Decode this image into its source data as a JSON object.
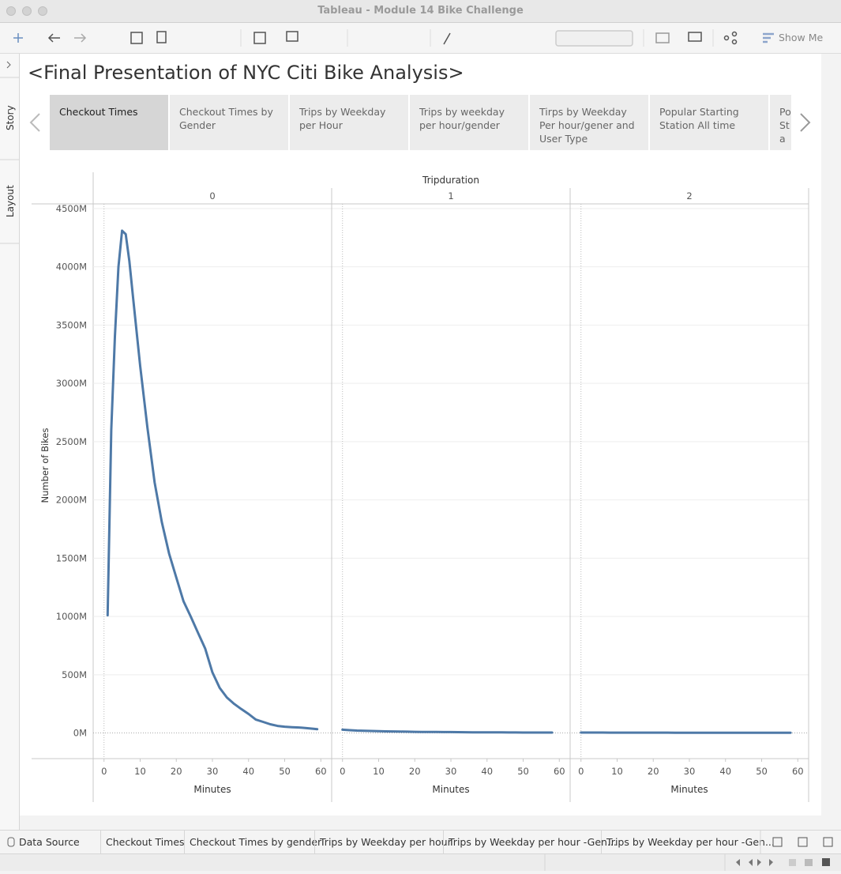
{
  "window": {
    "title": "Tableau - Module 14 Bike Challenge"
  },
  "toolbar": {
    "show_me": "Show Me"
  },
  "side_tabs": [
    "Story",
    "Layout"
  ],
  "story": {
    "title": "<Final Presentation of NYC Citi Bike Analysis>",
    "points": [
      "Checkout Times",
      "Checkout Times by Gender",
      "Trips by Weekday per Hour",
      "Trips by weekday per hour/gender",
      "Tirps by Weekday Per hour/gener and User Type",
      "Popular Starting Station All time",
      "Po Sta"
    ]
  },
  "sheet_tabs": [
    "Data Source",
    "Checkout Times",
    "Checkout Times by gender",
    "Trips by Weekday per hour",
    "Trips by Weekday per hour -Gen...",
    "Trips by Weekday per hour -Gen..."
  ],
  "chart_data": {
    "type": "line",
    "facet_label": "Tripduration",
    "x_label": "Minutes",
    "y_label": "Number of Bikes",
    "series": [
      {
        "name": "0",
        "color": "#4e79a7",
        "x": [
          1,
          2,
          3,
          4,
          5,
          6,
          7,
          8,
          9,
          10,
          12,
          14,
          16,
          18,
          20,
          22,
          24,
          26,
          28,
          30,
          32,
          34,
          36,
          38,
          40,
          42,
          44,
          46,
          48,
          50,
          52,
          54,
          56,
          58,
          59
        ],
        "values": [
          1010000000,
          2600000000,
          3400000000,
          4000000000,
          4310000000,
          4280000000,
          4050000000,
          3750000000,
          3450000000,
          3150000000,
          2625000000,
          2150000000,
          1810000000,
          1540000000,
          1335000000,
          1130000000,
          1000000000,
          860000000,
          725000000,
          520000000,
          387000000,
          305000000,
          250000000,
          205000000,
          163000000,
          115000000,
          95000000,
          75000000,
          61000000,
          54000000,
          50000000,
          47000000,
          42000000,
          36000000,
          33000000
        ]
      },
      {
        "name": "1",
        "color": "#4e79a7",
        "x": [
          0,
          2,
          4,
          6,
          8,
          10,
          12,
          14,
          16,
          18,
          20,
          22,
          24,
          26,
          28,
          30,
          32,
          34,
          36,
          38,
          40,
          42,
          44,
          46,
          48,
          50,
          52,
          54,
          56,
          58
        ],
        "values": [
          28000000,
          24000000,
          21000000,
          19000000,
          17000000,
          15000000,
          14000000,
          13000000,
          12000000,
          11000000,
          10000000,
          9500000,
          9000000,
          8500000,
          8000000,
          7500000,
          7000000,
          6500000,
          6000000,
          6000000,
          5500000,
          5000000,
          5000000,
          4500000,
          4500000,
          4000000,
          4000000,
          4000000,
          3500000,
          3500000
        ]
      },
      {
        "name": "2",
        "color": "#4e79a7",
        "x": [
          0,
          2,
          4,
          6,
          8,
          10,
          12,
          14,
          16,
          18,
          20,
          22,
          24,
          26,
          28,
          30,
          32,
          34,
          36,
          38,
          40,
          42,
          44,
          46,
          48,
          50,
          52,
          54,
          56,
          58
        ],
        "values": [
          4000000,
          3800000,
          3600000,
          3500000,
          3400000,
          3300000,
          3200000,
          3100000,
          3000000,
          3000000,
          2900000,
          2800000,
          2800000,
          2700000,
          2700000,
          2600000,
          2600000,
          2500000,
          2500000,
          2400000,
          2400000,
          2400000,
          2300000,
          2300000,
          2300000,
          2200000,
          2200000,
          2200000,
          2100000,
          2100000
        ]
      }
    ],
    "xlim": [
      -3,
      63
    ],
    "xticks": [
      0,
      10,
      20,
      30,
      40,
      50,
      60
    ],
    "ylim": [
      -220000000,
      4540000000
    ],
    "yticks": [
      {
        "value": 0,
        "label": "0M"
      },
      {
        "value": 500000000,
        "label": "500M"
      },
      {
        "value": 1000000000,
        "label": "1000M"
      },
      {
        "value": 1500000000,
        "label": "1500M"
      },
      {
        "value": 2000000000,
        "label": "2000M"
      },
      {
        "value": 2500000000,
        "label": "2500M"
      },
      {
        "value": 3000000000,
        "label": "3000M"
      },
      {
        "value": 3500000000,
        "label": "3500M"
      },
      {
        "value": 4000000000,
        "label": "4000M"
      },
      {
        "value": 4500000000,
        "label": "4500M"
      }
    ],
    "grid": true
  }
}
